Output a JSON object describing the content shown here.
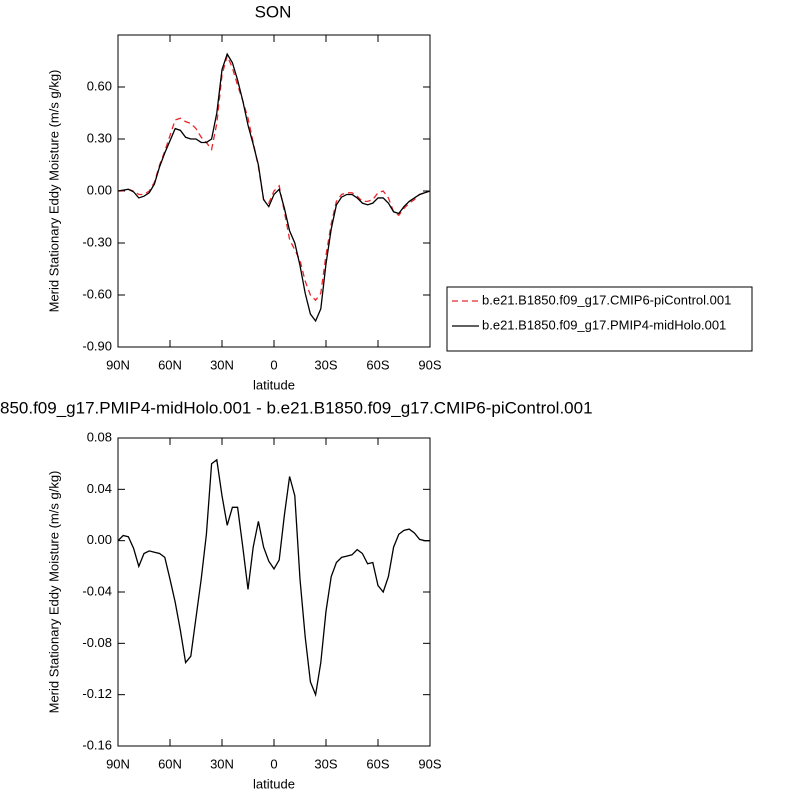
{
  "chart_data": [
    {
      "type": "line",
      "title": "SON",
      "xlabel": "latitude",
      "ylabel": "Merid Stationary Eddy Moisture (m/s g/kg)",
      "x": [
        90,
        87,
        84,
        81,
        78,
        75,
        72,
        69,
        66,
        63,
        60,
        57,
        54,
        51,
        48,
        45,
        42,
        39,
        36,
        33,
        30,
        27,
        24,
        21,
        18,
        15,
        12,
        9,
        6,
        3,
        0,
        -3,
        -6,
        -9,
        -12,
        -15,
        -18,
        -21,
        -24,
        -27,
        -30,
        -33,
        -36,
        -39,
        -42,
        -45,
        -48,
        -51,
        -54,
        -57,
        -60,
        -63,
        -66,
        -69,
        -72,
        -75,
        -78,
        -81,
        -84,
        -87,
        -90
      ],
      "xlim": [
        90,
        -90
      ],
      "xticks": [
        {
          "value": 90,
          "label": "90N"
        },
        {
          "value": 60,
          "label": "60N"
        },
        {
          "value": 30,
          "label": "30N"
        },
        0,
        {
          "value": -30,
          "label": "30S"
        },
        {
          "value": -60,
          "label": "60S"
        },
        {
          "value": -90,
          "label": "90S"
        }
      ],
      "ylim": [
        -0.9,
        0.9
      ],
      "yticks": [
        {
          "value": -0.9,
          "label": "-0.90"
        },
        {
          "value": -0.6,
          "label": "-0.60"
        },
        {
          "value": -0.3,
          "label": "-0.30"
        },
        {
          "value": 0,
          "label": "0.00"
        },
        {
          "value": 0.3,
          "label": "0.30"
        },
        {
          "value": 0.6,
          "label": "0.60"
        }
      ],
      "legend": "right",
      "series": [
        {
          "name": "b.e21.B1850.f09_g17.CMIP6-piControl.001",
          "color": "#e8262b",
          "line_style": "dashed",
          "values": [
            0,
            0,
            0.01,
            0,
            -0.02,
            -0.02,
            0,
            0.05,
            0.15,
            0.23,
            0.32,
            0.41,
            0.42,
            0.4,
            0.39,
            0.36,
            0.31,
            0.28,
            0.24,
            0.39,
            0.67,
            0.78,
            0.71,
            0.61,
            0.52,
            0.42,
            0.28,
            0.14,
            -0.05,
            -0.07,
            0,
            0.03,
            -0.12,
            -0.28,
            -0.34,
            -0.4,
            -0.52,
            -0.6,
            -0.63,
            -0.59,
            -0.37,
            -0.19,
            -0.06,
            -0.02,
            -0.01,
            -0.01,
            -0.03,
            -0.06,
            -0.06,
            -0.05,
            -0.01,
            0,
            -0.04,
            -0.12,
            -0.14,
            -0.1,
            -0.07,
            -0.05,
            -0.02,
            -0.01,
            0
          ]
        },
        {
          "name": "b.e21.B1850.f09_g17.PMIP4-midHolo.001",
          "color": "#000000",
          "line_style": "solid",
          "values": [
            0,
            0.005,
            0.01,
            -0.005,
            -0.04,
            -0.03,
            -0.01,
            0.04,
            0.14,
            0.22,
            0.29,
            0.36,
            0.35,
            0.31,
            0.3,
            0.3,
            0.28,
            0.28,
            0.3,
            0.45,
            0.7,
            0.79,
            0.74,
            0.64,
            0.52,
            0.38,
            0.27,
            0.15,
            -0.05,
            -0.09,
            -0.02,
            0.01,
            -0.1,
            -0.23,
            -0.3,
            -0.43,
            -0.59,
            -0.71,
            -0.75,
            -0.68,
            -0.42,
            -0.22,
            -0.08,
            -0.035,
            -0.02,
            -0.02,
            -0.04,
            -0.07,
            -0.08,
            -0.07,
            -0.04,
            -0.04,
            -0.07,
            -0.12,
            -0.13,
            -0.09,
            -0.06,
            -0.04,
            -0.02,
            -0.01,
            0
          ]
        }
      ]
    },
    {
      "type": "line",
      "title": "850.f09_g17.PMIP4-midHolo.001 - b.e21.B1850.f09_g17.CMIP6-piControl.001",
      "xlabel": "latitude",
      "ylabel": "Merid Stationary Eddy Moisture (m/s g/kg)",
      "x": [
        90,
        87,
        84,
        81,
        78,
        75,
        72,
        69,
        66,
        63,
        60,
        57,
        54,
        51,
        48,
        45,
        42,
        39,
        36,
        33,
        30,
        27,
        24,
        21,
        18,
        15,
        12,
        9,
        6,
        3,
        0,
        -3,
        -6,
        -9,
        -12,
        -15,
        -18,
        -21,
        -24,
        -27,
        -30,
        -33,
        -36,
        -39,
        -42,
        -45,
        -48,
        -51,
        -54,
        -57,
        -60,
        -63,
        -66,
        -69,
        -72,
        -75,
        -78,
        -81,
        -84,
        -87,
        -90
      ],
      "xlim": [
        90,
        -90
      ],
      "xticks": [
        {
          "value": 90,
          "label": "90N"
        },
        {
          "value": 60,
          "label": "60N"
        },
        {
          "value": 30,
          "label": "30N"
        },
        0,
        {
          "value": -30,
          "label": "30S"
        },
        {
          "value": -60,
          "label": "60S"
        },
        {
          "value": -90,
          "label": "90S"
        }
      ],
      "ylim": [
        -0.16,
        0.08
      ],
      "yticks": [
        -0.16,
        -0.12,
        -0.08,
        -0.04,
        {
          "value": 0,
          "label": "0.00"
        },
        0.04,
        0.08
      ],
      "color": "#000000",
      "values": [
        0,
        0.004,
        0.003,
        -0.006,
        -0.02,
        -0.01,
        -0.008,
        -0.009,
        -0.01,
        -0.013,
        -0.03,
        -0.048,
        -0.07,
        -0.095,
        -0.09,
        -0.06,
        -0.03,
        0.005,
        0.06,
        0.063,
        0.035,
        0.012,
        0.026,
        0.026,
        -0.005,
        -0.038,
        -0.005,
        0.015,
        -0.005,
        -0.016,
        -0.022,
        -0.015,
        0.02,
        0.05,
        0.035,
        -0.03,
        -0.075,
        -0.11,
        -0.12,
        -0.095,
        -0.055,
        -0.028,
        -0.017,
        -0.013,
        -0.012,
        -0.011,
        -0.007,
        -0.01,
        -0.018,
        -0.017,
        -0.035,
        -0.04,
        -0.028,
        -0.005,
        0.005,
        0.008,
        0.009,
        0.006,
        0.001,
        0,
        0
      ]
    }
  ]
}
